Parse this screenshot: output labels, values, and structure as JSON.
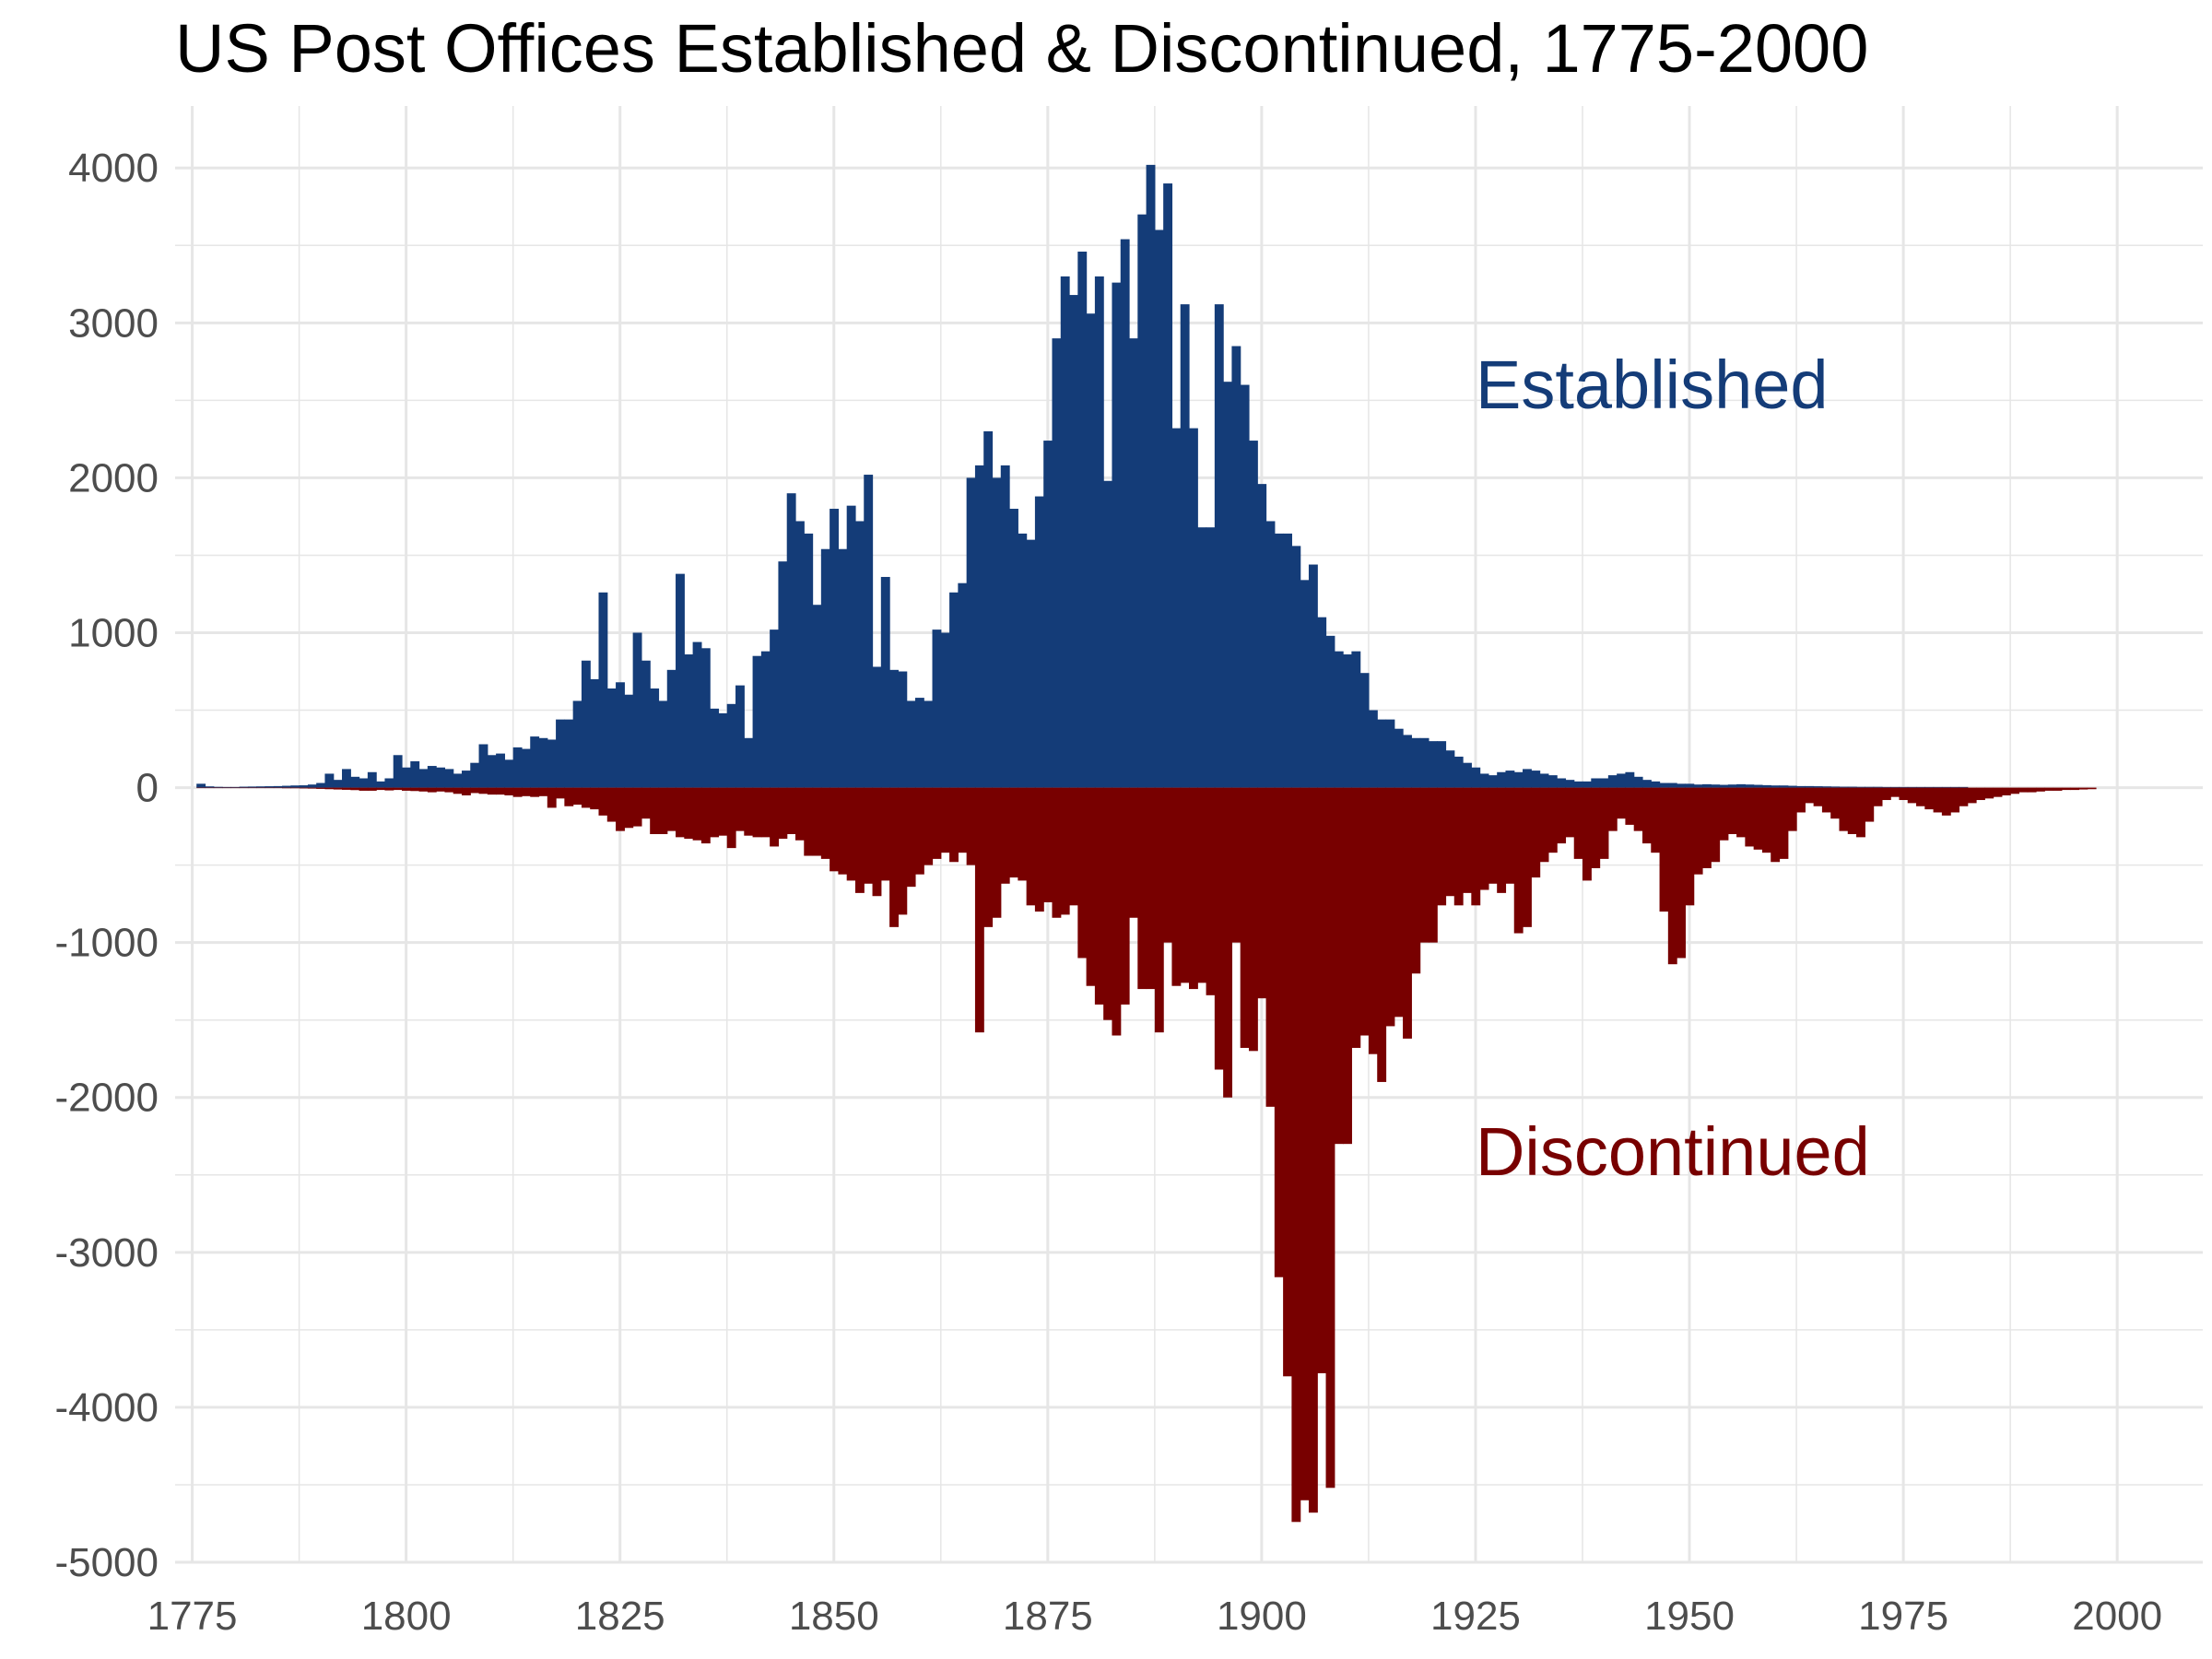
{
  "chart_data": {
    "type": "bar",
    "title": "US Post Offices Established & Discontinued, 1775-2000",
    "xlabel": "",
    "ylabel": "",
    "xlim": [
      1773,
      2010
    ],
    "ylim": [
      -5000,
      4400
    ],
    "x_ticks": [
      1775,
      1800,
      1825,
      1850,
      1875,
      1900,
      1925,
      1950,
      1975,
      2000
    ],
    "y_ticks": [
      4000,
      3000,
      2000,
      1000,
      0,
      -1000,
      -2000,
      -3000,
      -4000,
      -5000
    ],
    "grid": true,
    "colors": {
      "established": "#143c78",
      "discontinued": "#780000",
      "grid": "#e6e6e6",
      "tick_label": "#4d4d4d"
    },
    "annotations": [
      {
        "text": "Established",
        "x": 1925,
        "y": 2450,
        "series": "Established"
      },
      {
        "text": "Discontinued",
        "x": 1925,
        "y": -2500,
        "series": "Discontinued"
      }
    ],
    "series": [
      {
        "name": "Established",
        "x_start": 1776,
        "values": [
          25,
          8,
          5,
          4,
          4,
          6,
          7,
          8,
          9,
          10,
          12,
          14,
          15,
          20,
          30,
          90,
          50,
          120,
          70,
          60,
          100,
          40,
          60,
          210,
          130,
          170,
          120,
          140,
          130,
          120,
          90,
          110,
          160,
          280,
          210,
          220,
          180,
          260,
          250,
          330,
          320,
          310,
          440,
          440,
          560,
          820,
          700,
          1260,
          640,
          680,
          600,
          1000,
          820,
          640,
          560,
          760,
          1380,
          860,
          940,
          900,
          510,
          480,
          540,
          660,
          320,
          850,
          880,
          1020,
          1460,
          1900,
          1720,
          1640,
          1180,
          1540,
          1800,
          1540,
          1820,
          1720,
          2020,
          780,
          1360,
          760,
          750,
          560,
          580,
          560,
          1020,
          1000,
          1260,
          1320,
          2000,
          2080,
          2300,
          2000,
          2080,
          1800,
          1640,
          1600,
          1880,
          2240,
          2900,
          3300,
          3180,
          3460,
          3060,
          3300,
          1980,
          3260,
          3540,
          2900,
          3700,
          4020,
          3600,
          3900,
          2320,
          3120,
          2320,
          1680,
          1680,
          3120,
          2620,
          2850,
          2600,
          2240,
          1960,
          1720,
          1640,
          1640,
          1560,
          1340,
          1440,
          1100,
          980,
          880,
          860,
          880,
          740,
          500,
          440,
          440,
          380,
          340,
          320,
          320,
          300,
          300,
          240,
          200,
          160,
          130,
          90,
          80,
          100,
          110,
          100,
          120,
          110,
          90,
          80,
          60,
          50,
          40,
          40,
          60,
          60,
          80,
          90,
          100,
          70,
          50,
          40,
          30,
          30,
          25,
          25,
          20,
          22,
          20,
          18,
          20,
          22,
          20,
          18,
          16,
          14,
          14,
          12,
          10,
          10,
          9,
          8,
          7,
          6,
          6,
          5,
          5,
          5,
          4,
          4,
          4,
          4,
          4,
          4,
          4,
          4,
          4,
          4
        ]
      },
      {
        "name": "Discontinued",
        "x_start": 1776,
        "values": [
          -2,
          -2,
          -2,
          -2,
          -2,
          -3,
          -3,
          -3,
          -3,
          -3,
          -4,
          -4,
          -5,
          -6,
          -8,
          -10,
          -12,
          -14,
          -16,
          -20,
          -20,
          -15,
          -18,
          -15,
          -20,
          -22,
          -25,
          -30,
          -25,
          -30,
          -40,
          -50,
          -35,
          -40,
          -45,
          -45,
          -50,
          -60,
          -55,
          -60,
          -55,
          -130,
          -70,
          -120,
          -110,
          -130,
          -140,
          -180,
          -220,
          -280,
          -260,
          -250,
          -200,
          -300,
          -300,
          -280,
          -320,
          -330,
          -340,
          -360,
          -320,
          -310,
          -390,
          -280,
          -310,
          -320,
          -320,
          -380,
          -330,
          -300,
          -340,
          -440,
          -440,
          -460,
          -540,
          -560,
          -600,
          -680,
          -620,
          -700,
          -600,
          -900,
          -820,
          -640,
          -560,
          -500,
          -460,
          -420,
          -480,
          -420,
          -500,
          -1580,
          -900,
          -840,
          -620,
          -580,
          -600,
          -760,
          -800,
          -740,
          -840,
          -820,
          -760,
          -1100,
          -1280,
          -1400,
          -1500,
          -1600,
          -1400,
          -840,
          -1300,
          -1300,
          -1580,
          -1000,
          -1280,
          -1260,
          -1300,
          -1260,
          -1340,
          -1820,
          -2000,
          -1000,
          -1680,
          -1700,
          -1360,
          -2060,
          -3160,
          -3800,
          -4740,
          -4600,
          -4680,
          -3780,
          -4520,
          -2300,
          -2300,
          -1680,
          -1600,
          -1720,
          -1900,
          -1540,
          -1480,
          -1620,
          -1200,
          -1000,
          -1000,
          -760,
          -700,
          -760,
          -680,
          -760,
          -660,
          -620,
          -680,
          -620,
          -940,
          -900,
          -580,
          -480,
          -420,
          -360,
          -320,
          -460,
          -600,
          -520,
          -460,
          -280,
          -200,
          -240,
          -280,
          -360,
          -420,
          -800,
          -1140,
          -1100,
          -760,
          -560,
          -520,
          -480,
          -340,
          -300,
          -320,
          -380,
          -400,
          -420,
          -480,
          -460,
          -280,
          -160,
          -100,
          -120,
          -160,
          -200,
          -280,
          -300,
          -320,
          -220,
          -120,
          -80,
          -60,
          -80,
          -100,
          -120,
          -140,
          -160,
          -180,
          -160,
          -120,
          -100,
          -80,
          -70,
          -60,
          -50,
          -40,
          -30,
          -30,
          -25,
          -20,
          -20,
          -15,
          -15,
          -12,
          -10
        ]
      }
    ]
  }
}
